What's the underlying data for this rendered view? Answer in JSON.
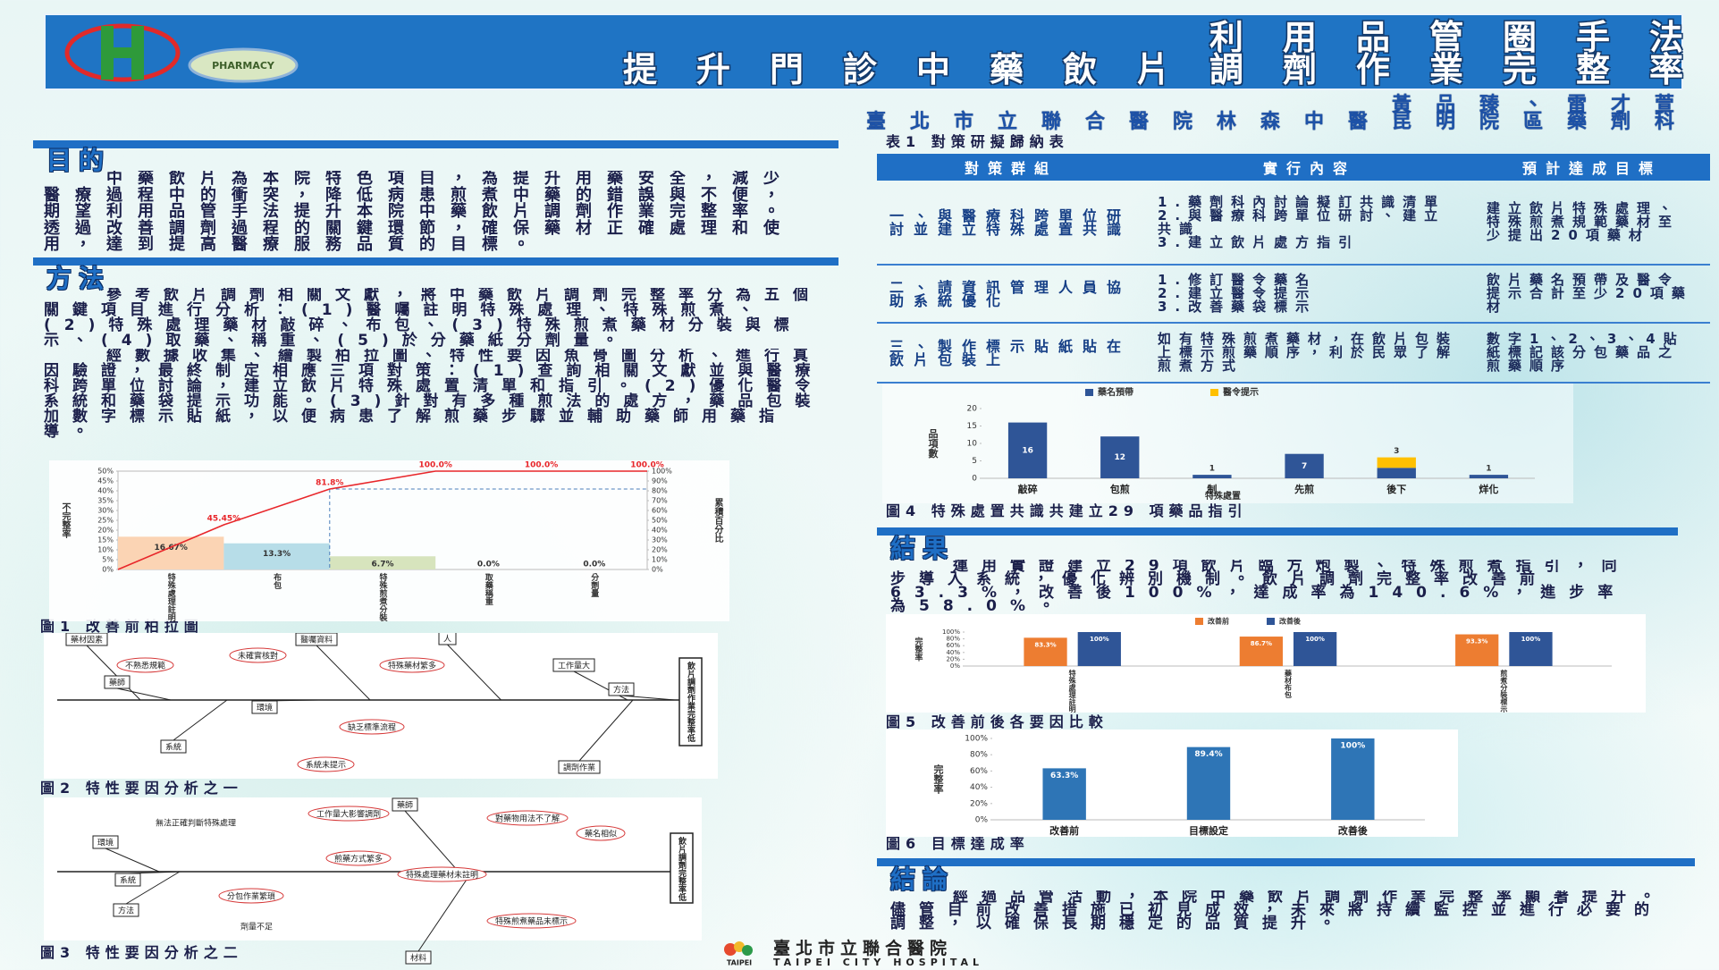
{
  "header": {
    "title_lines": [
      "利用品管圈手法",
      "提升門診中藥飲片調劑作業完整率"
    ],
    "authors": "黃品臻、雷才萱",
    "affiliation": "臺北市立聯合醫院林森中醫昆明院區藥劑科",
    "logo_text": "PHARMACY"
  },
  "sections": {
    "purpose": {
      "heading": "目的",
      "text": "中藥飲片為本院特色項目，為提升用藥安全，減少醫療過程中的衝突，降低病患煎煮中藥的錯誤與不便，期望利用品管手法提升本院中藥飲片調劑作業完整率。透過改善調劑過程的關鍵環節，確保藥材正確處理和使用，達到提高醫療服務品質的目標。"
    },
    "method": {
      "heading": "方法",
      "paragraphs": [
        "參考飲片調劑相關文獻，將中藥飲片調劑完整率分為五個關鍵項目進行分析：(1)醫囑註明特殊處理、特殊煎煮、(2)特殊處理藥材敲碎、布包、(3)特殊煎煮藥材分裝與標示、(4)取藥、稱重、(5)於分藥紙分劑量。",
        "經數據收集、繪製柏拉圖、特性要因魚骨圖分析、進行真因驗證，最終制定相應三項對策：(1)查詢相關文獻並與醫療科跨單位討論，建立飲片特殊處置清單和指引。(2)優化醫令系統和藥袋提示功能。(3)針對有多種煎法的處方，藥品包裝加數字標示貼紙，以便病患了解煎藥步驟並輔助藥師用藥指導。"
      ]
    },
    "results": {
      "heading": "結果",
      "text": "運用實證建立29項飲片臨方炮製、特殊煎煮指引，同步導入系統，優化辨別機制。飲片調劑完整率改善前63.3%，改善後100%，達成率為140.6%，進步率為58.0%。"
    },
    "conclusion": {
      "heading": "結論",
      "text": "經過品管活動，本院中藥飲片調劑作業完整率顯著提升。儘管目前改善措施已初見成效，未來將持續監控並進行必要的調整，以確保長期穩定的品質提升。"
    }
  },
  "table": {
    "caption": "表1 對策研擬歸納表",
    "headers": [
      "對策群組",
      "實行內容",
      "預計達成目標"
    ],
    "rows": [
      [
        "一、與醫療科跨單位研討並建立特殊處置共識",
        [
          "1.藥劑科內討論擬訂共識清單",
          "2.與醫療科跨單位研討、建立共識",
          "3.建立飲片處方指引"
        ],
        "建立飲片特殊處理、特殊煎煮規範藥材至少提出20項藥材"
      ],
      [
        "二、請資訊管理人員協助系統優化",
        [
          "1.修訂醫令藥名",
          "2.建立醫令提示",
          "3.改善藥袋標示"
        ],
        "飲片藥名預帶及醫令提示合計至少20項藥材"
      ],
      [
        "三、製作標示貼紙貼在飲片包裝上",
        [
          "如有特殊煎煮藥材，在飲片包裝上標示煎藥順序，利於民眾了解煎煮方式"
        ],
        "數字1、2、3、4貼紙標記該分包藥品之煎藥順序"
      ]
    ]
  },
  "chart_data": [
    {
      "type": "bar",
      "title": "圖1 改善前柏拉圖",
      "categories": [
        "特殊處理註明",
        "布包",
        "特殊煎煮分裝",
        "取藥稱重",
        "分劑量"
      ],
      "series": [
        {
          "colors": [
            "#fbd4b4",
            "#b7dde8",
            "#d7e4bd",
            "#e5e5e5",
            "#e5e5e5"
          ],
          "values": [
            16.67,
            13.3,
            6.7,
            0,
            0
          ],
          "value_labels": [
            "16.67%",
            "13.3%",
            "6.7%",
            "0.0%",
            "0.0%"
          ]
        },
        {
          "type": "line",
          "axis": "y2",
          "color": "#e8262a",
          "values": [
            45.45,
            81.8,
            100,
            100,
            100
          ],
          "value_labels": [
            "45.45%",
            "81.8%",
            "100.0%",
            "100.0%",
            "100.0%"
          ]
        }
      ],
      "ylabel": "不完整率",
      "y2label": "累積百分比",
      "ylim": [
        0,
        50
      ],
      "yticks": [
        {
          "value": 0,
          "label": "0%"
        },
        {
          "value": 5,
          "label": "5%"
        },
        {
          "value": 10,
          "label": "10%"
        },
        {
          "value": 15,
          "label": "15%"
        },
        {
          "value": 20,
          "label": "20%"
        },
        {
          "value": 25,
          "label": "25%"
        },
        {
          "value": 30,
          "label": "30%"
        },
        {
          "value": 35,
          "label": "35%"
        },
        {
          "value": 40,
          "label": "40%"
        },
        {
          "value": 45,
          "label": "45%"
        },
        {
          "value": 50,
          "label": "50%"
        }
      ],
      "y2lim": [
        0,
        100
      ],
      "y2ticks": [
        {
          "value": 0,
          "label": "0%"
        },
        {
          "value": 10,
          "label": "10%"
        },
        {
          "value": 20,
          "label": "20%"
        },
        {
          "value": 30,
          "label": "30%"
        },
        {
          "value": 40,
          "label": "40%"
        },
        {
          "value": 50,
          "label": "50%"
        },
        {
          "value": 60,
          "label": "60%"
        },
        {
          "value": 70,
          "label": "70%"
        },
        {
          "value": 80,
          "label": "80%"
        },
        {
          "value": 90,
          "label": "90%"
        },
        {
          "value": 100,
          "label": "100%"
        }
      ]
    },
    {
      "type": "bar",
      "title": "圖4 特殊處置共識共建立29 項藥品指引",
      "stacked": true,
      "categories": [
        "敲碎",
        "包煎",
        "制",
        "先煎",
        "後下",
        "烊化"
      ],
      "series": [
        {
          "name": "藥名預帶",
          "color": "#2f5597",
          "values": [
            16,
            12,
            1,
            7,
            3,
            1
          ]
        },
        {
          "name": "醫令提示",
          "color": "#ffc000",
          "values": [
            null,
            null,
            null,
            null,
            3,
            null
          ]
        }
      ],
      "xlabel": "特殊處置",
      "ylabel": "品項數",
      "ylim": [
        0,
        20
      ],
      "yticks": [
        0,
        5,
        10,
        15,
        20
      ]
    },
    {
      "type": "bar",
      "title": "圖5 改善前後各要因比較",
      "categories": [
        "特殊處理註明",
        "藥材布包",
        "煎煮分裝標示"
      ],
      "series": [
        {
          "name": "改善前",
          "color": "#ed7d31",
          "values": [
            83.3,
            86.7,
            93.3
          ],
          "value_labels": [
            "83.3%",
            "86.7%",
            "93.3%"
          ]
        },
        {
          "name": "改善後",
          "color": "#2f5597",
          "values": [
            100,
            100,
            100
          ],
          "value_labels": [
            "100%",
            "100%",
            "100%"
          ]
        }
      ],
      "ylabel": "完整率",
      "ylim": [
        0,
        100
      ],
      "yticks": [
        {
          "value": 0,
          "label": "0%"
        },
        {
          "value": 20,
          "label": "20%"
        },
        {
          "value": 40,
          "label": "40%"
        },
        {
          "value": 60,
          "label": "60%"
        },
        {
          "value": 80,
          "label": "80%"
        },
        {
          "value": 100,
          "label": "100%"
        }
      ]
    },
    {
      "type": "bar",
      "title": "圖6 目標達成率",
      "categories": [
        "改善前",
        "目標設定",
        "改善後"
      ],
      "series": [
        {
          "color": "#2e75b6",
          "values": [
            63.3,
            89.4,
            100
          ],
          "value_labels": [
            "63.3%",
            "89.4%",
            "100%"
          ]
        }
      ],
      "ylabel": "完整率",
      "ylim": [
        0,
        100
      ],
      "yticks": [
        {
          "value": 0,
          "label": "0%"
        },
        {
          "value": 20,
          "label": "20%"
        },
        {
          "value": 40,
          "label": "40%"
        },
        {
          "value": 60,
          "label": "60%"
        },
        {
          "value": 80,
          "label": "80%"
        },
        {
          "value": 100,
          "label": "100%"
        }
      ]
    }
  ],
  "diagrams": [
    {
      "title": "圖2 特性要因分析之一",
      "effect": "飲片調劑作業完整率低",
      "causes": [
        "藥材因素",
        "醫囑資料",
        "人",
        "工作量大",
        "藥師",
        "方法",
        "環境",
        "系統",
        "調劑作業",
        "不熟悉規範",
        "未確實核對",
        "特殊藥材繁多",
        "缺乏標準流程",
        "系統未提示"
      ]
    },
    {
      "title": "圖3 特性要因分析之二",
      "effect": "飲片調劑完整率低",
      "causes": [
        "藥師",
        "材料",
        "環境",
        "系統",
        "方法",
        "工作量大影響調劑",
        "對藥物用法不了解",
        "藥名相似",
        "煎藥方式繁多",
        "特殊處理藥材未註明",
        "分包作業繁瑣",
        "特殊煎煮藥品未標示",
        "無法正確判斷特殊處理",
        "劑量不足"
      ]
    }
  ],
  "footer": {
    "name": "臺北市立聯合醫院",
    "english": "TAIPEI CITY HOSPITAL",
    "city": "TAIPEI"
  }
}
